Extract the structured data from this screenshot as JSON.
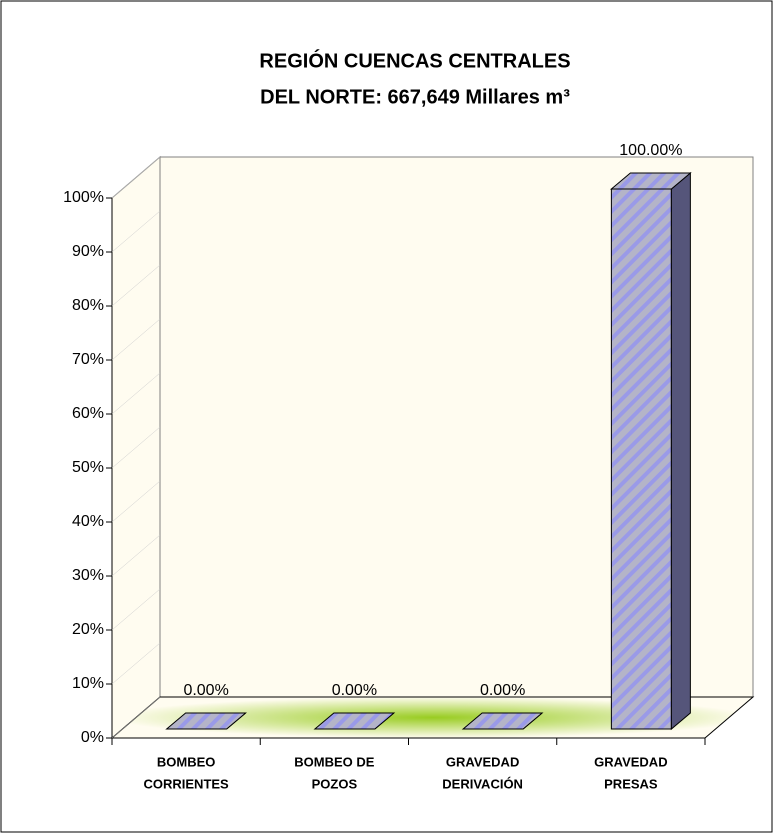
{
  "chart_data": {
    "type": "bar3d",
    "title": [
      "REGIÓN CUENCAS CENTRALES",
      "DEL NORTE: 667,649 Millares m³"
    ],
    "categories": [
      [
        "BOMBEO",
        "CORRIENTES"
      ],
      [
        "BOMBEO DE",
        "POZOS"
      ],
      [
        "GRAVEDAD",
        "DERIVACIÓN"
      ],
      [
        "GRAVEDAD",
        "PRESAS"
      ]
    ],
    "values": [
      0,
      0,
      0,
      100
    ],
    "value_labels": [
      "0.00%",
      "0.00%",
      "0.00%",
      "100.00%"
    ],
    "color": "#a8a8d0",
    "ylim": [
      0,
      100
    ],
    "yticks": [
      {
        "value": 0,
        "label": "0%"
      },
      {
        "value": 10,
        "label": "10%"
      },
      {
        "value": 20,
        "label": "20%"
      },
      {
        "value": 30,
        "label": "30%"
      },
      {
        "value": 40,
        "label": "40%"
      },
      {
        "value": 50,
        "label": "50%"
      },
      {
        "value": 60,
        "label": "60%"
      },
      {
        "value": 70,
        "label": "70%"
      },
      {
        "value": 80,
        "label": "80%"
      },
      {
        "value": 90,
        "label": "90%"
      },
      {
        "value": 100,
        "label": "100%"
      }
    ]
  }
}
